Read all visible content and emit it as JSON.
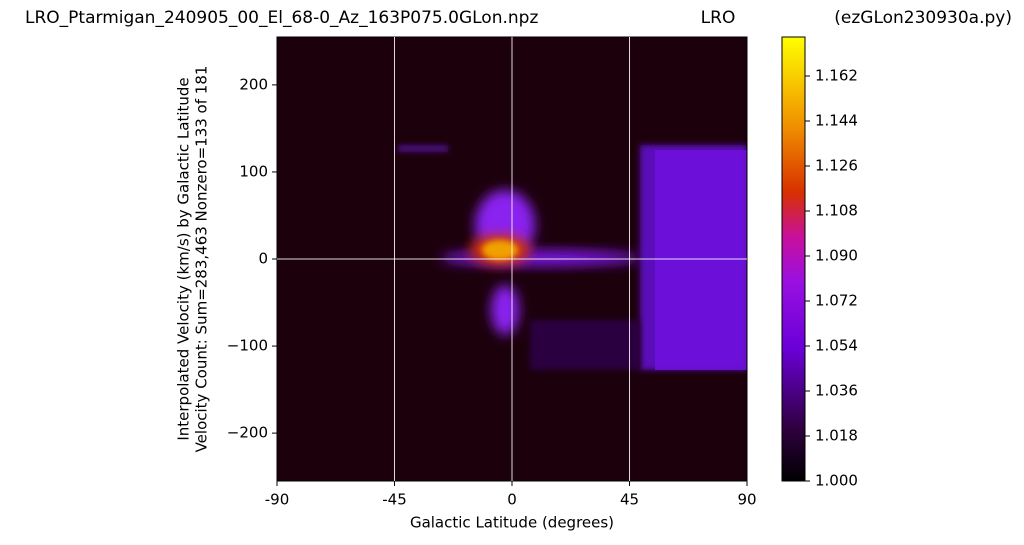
{
  "chart_data": {
    "type": "heatmap",
    "title": "LRO_Ptarmigan_240905_00_El_68-0_Az_163P075.0GLon.npz",
    "title_center": "LRO",
    "title_right": "(ezGLon230930a.py)",
    "x_label": "Galactic Latitude (degrees)",
    "y_label": [
      "Interpolated Velocity (km/s) by Galactic Latitude",
      "Velocity Count: Sum=283,463 Nonzero=133 of 181"
    ],
    "xlim": [
      -90,
      90
    ],
    "xticks": [
      -90,
      -45,
      0,
      45,
      90
    ],
    "ylim": [
      -255,
      255
    ],
    "yticks": [
      {
        "value": -200,
        "label": "−200"
      },
      {
        "value": -100,
        "label": "−100"
      },
      0,
      100,
      200
    ],
    "vlines": [
      -45,
      0,
      45
    ],
    "hlines": [
      0
    ],
    "clim": [
      1.0,
      1.1776
    ],
    "cticks": [
      {
        "value": 1.0,
        "label": "1.000"
      },
      1.018,
      1.036,
      1.054,
      1.072,
      {
        "value": 1.09,
        "label": "1.090"
      },
      1.108,
      1.126,
      1.144,
      1.162
    ]
  }
}
